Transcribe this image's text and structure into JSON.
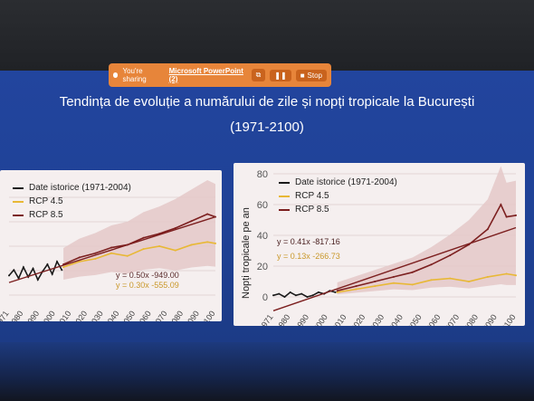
{
  "share_bar": {
    "sharing_text": "You're sharing",
    "app_name": "Microsoft PowerPoint (2)",
    "stop_label": "Stop"
  },
  "slide": {
    "title_line1": "Tendința de evoluție a numărului de zile și nopți tropicale la București",
    "title_line2": "(1971-2100)"
  },
  "colors": {
    "historic": "#1a1a1a",
    "rcp45": "#e8b836",
    "rcp85": "#7c1f1f",
    "band": "#e4c8c8",
    "share_bar": "#e7853a"
  },
  "chart_data": [
    {
      "type": "line",
      "legend": [
        "Date istorice (1971-2004)",
        "RCP 4.5",
        "RCP 8.5"
      ],
      "x_ticks": [
        "1971",
        "1980",
        "1990",
        "2000",
        "2010",
        "2020",
        "2030",
        "2040",
        "2050",
        "2060",
        "2070",
        "2080",
        "2090",
        "2100"
      ],
      "equations": [
        "y = 0.50x -949.00",
        "y = 0.30x -555.09"
      ],
      "series": [
        {
          "name": "Date istorice (1971-2004)",
          "x": [
            1971,
            1974,
            1977,
            1980,
            1983,
            1986,
            1989,
            1992,
            1995,
            1998,
            2001,
            2004
          ],
          "values": [
            14,
            18,
            12,
            20,
            13,
            19,
            11,
            17,
            22,
            15,
            24,
            18
          ]
        },
        {
          "name": "RCP 4.5",
          "x": [
            2005,
            2015,
            2025,
            2035,
            2045,
            2055,
            2065,
            2075,
            2085,
            2095,
            2100
          ],
          "values": [
            20,
            24,
            26,
            30,
            28,
            33,
            35,
            32,
            36,
            38,
            37
          ]
        },
        {
          "name": "RCP 8.5",
          "x": [
            2005,
            2015,
            2025,
            2035,
            2045,
            2055,
            2065,
            2075,
            2085,
            2095,
            2100
          ],
          "values": [
            22,
            27,
            30,
            34,
            36,
            41,
            44,
            48,
            53,
            58,
            56
          ]
        }
      ],
      "trend": {
        "x": [
          1971,
          2100
        ],
        "values": [
          9,
          56
        ]
      }
    },
    {
      "type": "line",
      "ylabel": "Nopți tropicale pe an",
      "ylim": [
        0,
        80
      ],
      "y_ticks": [
        0,
        20,
        40,
        60,
        80
      ],
      "legend": [
        "Date istorice (1971-2004)",
        "RCP 4.5",
        "RCP 8.5"
      ],
      "x_ticks": [
        "1971",
        "1980",
        "1990",
        "2000",
        "2010",
        "2020",
        "2030",
        "2040",
        "2050",
        "2060",
        "2070",
        "2080",
        "2090",
        "2100"
      ],
      "equations": [
        "y = 0.41x -817.16",
        "y = 0.13x -266.73"
      ],
      "series": [
        {
          "name": "Date istorice (1971-2004)",
          "x": [
            1971,
            1974,
            1977,
            1980,
            1983,
            1986,
            1989,
            1992,
            1995,
            1998,
            2001,
            2004
          ],
          "values": [
            1,
            2,
            0,
            3,
            1,
            2,
            0,
            1,
            3,
            2,
            4,
            3
          ]
        },
        {
          "name": "RCP 4.5",
          "x": [
            2005,
            2015,
            2025,
            2035,
            2045,
            2055,
            2065,
            2075,
            2085,
            2095,
            2100
          ],
          "values": [
            3,
            5,
            7,
            9,
            8,
            11,
            12,
            10,
            13,
            15,
            14
          ]
        },
        {
          "name": "RCP 8.5",
          "x": [
            2005,
            2015,
            2025,
            2035,
            2045,
            2055,
            2065,
            2075,
            2085,
            2092,
            2095,
            2100
          ],
          "values": [
            4,
            7,
            10,
            13,
            16,
            21,
            27,
            34,
            44,
            60,
            52,
            53
          ]
        }
      ],
      "trend": {
        "x": [
          1971,
          2100
        ],
        "values": [
          -9,
          45
        ]
      }
    }
  ]
}
